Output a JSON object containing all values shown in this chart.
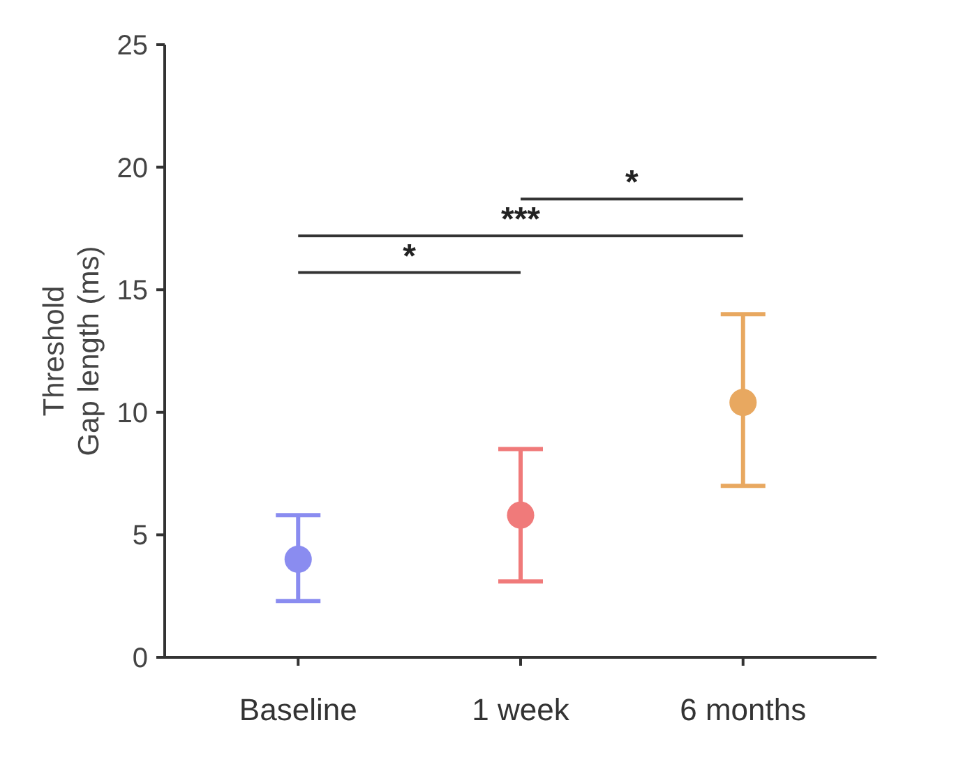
{
  "chart_data": {
    "type": "scatter",
    "ylabel": "Threshold\nGap length (ms)",
    "categories": [
      "Baseline",
      "1 week",
      "6 months"
    ],
    "values": [
      4.0,
      5.8,
      10.4
    ],
    "errors": [
      [
        2.3,
        5.8
      ],
      [
        3.1,
        8.5
      ],
      [
        7.0,
        14.0
      ]
    ],
    "colors": [
      "#8a8cf0",
      "#f07a7a",
      "#e8a860"
    ],
    "ylim": [
      0,
      25
    ],
    "yticks": [
      0,
      5,
      10,
      15,
      20,
      25
    ],
    "marker": "circle",
    "grid": false,
    "annotations": [
      "*",
      "***",
      "*"
    ]
  }
}
